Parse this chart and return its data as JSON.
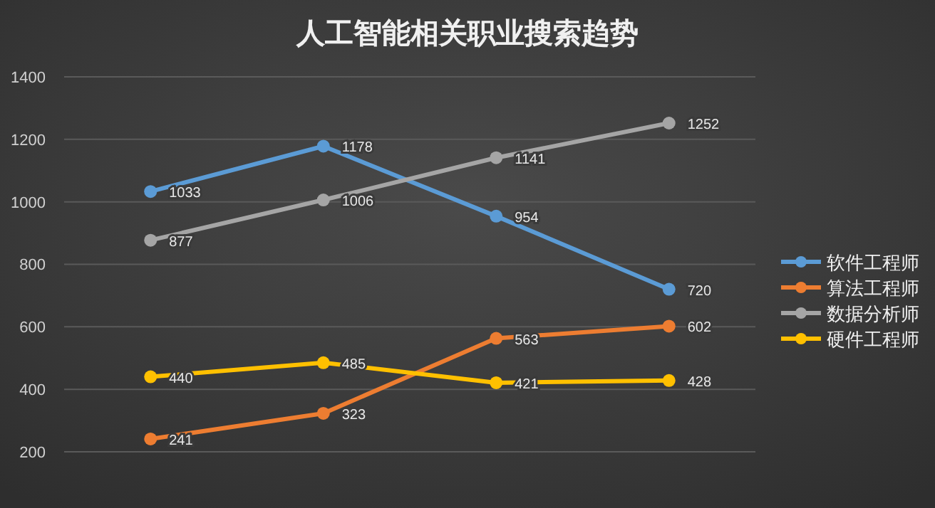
{
  "chart_data": {
    "type": "line",
    "title": "人工智能相关职业搜索趋势",
    "categories": [
      null,
      null,
      null,
      null
    ],
    "series": [
      {
        "name": "软件工程师",
        "color": "#5b9bd5",
        "values": [
          1033,
          1178,
          954,
          720
        ]
      },
      {
        "name": "算法工程师",
        "color": "#ed7d31",
        "values": [
          241,
          323,
          563,
          602
        ]
      },
      {
        "name": "数据分析师",
        "color": "#a5a5a5",
        "values": [
          877,
          1006,
          1141,
          1252
        ]
      },
      {
        "name": "硬件工程师",
        "color": "#ffc000",
        "values": [
          440,
          485,
          421,
          428
        ]
      }
    ],
    "ylim": [
      20,
      1400
    ],
    "yticks": [
      200,
      400,
      600,
      800,
      1000,
      1200,
      1400
    ],
    "grid": "y",
    "legend": "right",
    "marker": "circle",
    "line_style": "solid",
    "data_labels": true
  }
}
